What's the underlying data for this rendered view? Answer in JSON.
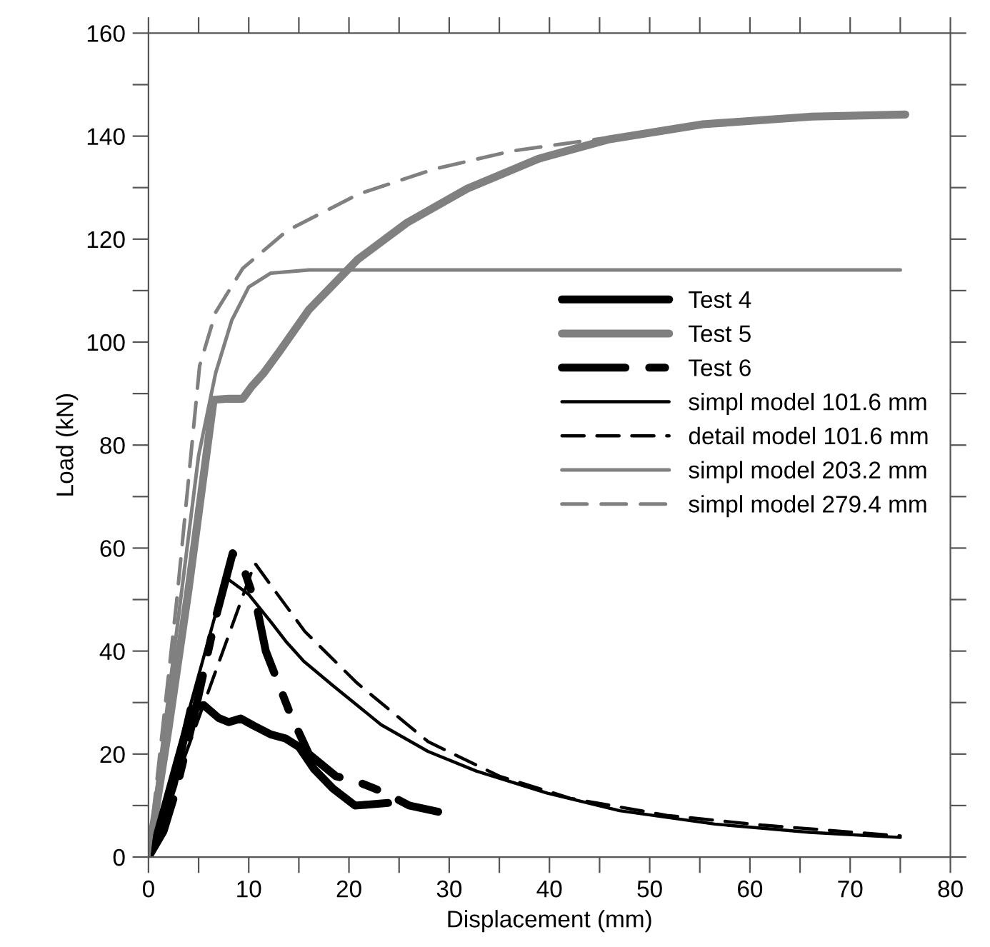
{
  "chart_data": {
    "type": "line",
    "xlabel": "Displacement (mm)",
    "ylabel": "Load (kN)",
    "xlim": [
      0,
      80
    ],
    "ylim": [
      0,
      160
    ],
    "xticks": [
      0,
      {
        "value": 5,
        "label": null
      },
      10,
      {
        "value": 15,
        "label": null
      },
      20,
      {
        "value": 25,
        "label": null
      },
      30,
      {
        "value": 35,
        "label": null
      },
      40,
      {
        "value": 45,
        "label": null
      },
      50,
      {
        "value": 55,
        "label": null
      },
      60,
      {
        "value": 65,
        "label": null
      },
      70,
      {
        "value": 75,
        "label": null
      },
      80
    ],
    "yticks": [
      0,
      {
        "value": 10,
        "label": null
      },
      20,
      {
        "value": 30,
        "label": null
      },
      40,
      {
        "value": 50,
        "label": null
      },
      60,
      {
        "value": 70,
        "label": null
      },
      80,
      {
        "value": 90,
        "label": null
      },
      100,
      {
        "value": 110,
        "label": null
      },
      120,
      {
        "value": 130,
        "label": null
      },
      140,
      {
        "value": 150,
        "label": null
      },
      160
    ],
    "grid": false,
    "legend": "center right",
    "marker": "none",
    "series": [
      {
        "name": "Test 4",
        "color": "#000000",
        "line_style": "solid",
        "x": [
          0,
          1,
          2.5,
          4.2,
          5.5,
          7,
          8,
          9.2,
          10.5,
          12.2,
          13.7,
          15,
          16.5,
          18.4,
          20.6,
          22,
          23.9
        ],
        "values": [
          0,
          5,
          14,
          28.6,
          29.5,
          27,
          26.2,
          26.9,
          25.5,
          23.8,
          23,
          21.4,
          17.1,
          13.3,
          10,
          10.2,
          10.5
        ]
      },
      {
        "name": "Test 5",
        "color": "#808080",
        "line_style": "solid",
        "x": [
          0,
          2,
          4,
          6.5,
          8,
          9.4,
          10.3,
          11.5,
          13,
          16,
          20.9,
          25.8,
          31.8,
          38.9,
          46,
          55.3,
          66.2,
          75.5
        ],
        "values": [
          0,
          25,
          52,
          88.8,
          89,
          89,
          91.4,
          94,
          98,
          106.3,
          116.1,
          123.2,
          129.8,
          135.6,
          139.4,
          142.3,
          143.8,
          144.2
        ]
      },
      {
        "name": "Test 6",
        "color": "#000000",
        "line_style": "dashdot",
        "x": [
          0,
          1.5,
          2.8,
          4.5,
          6.6,
          8.4,
          9.5,
          10.8,
          11.7,
          14.1,
          16,
          18.7,
          21,
          23.7,
          26,
          28.9
        ],
        "values": [
          0,
          5,
          13.3,
          27,
          45.7,
          59,
          56,
          48.6,
          40,
          28,
          20,
          15.7,
          14.5,
          12.4,
          10,
          8.8
        ]
      },
      {
        "name": "simpl model 101.6 mm",
        "color": "#000000",
        "line_style": "solid",
        "x": [
          0,
          7.7,
          10,
          12.2,
          13.7,
          15.5,
          18.4,
          23.2,
          27.9,
          32.7,
          39.8,
          47,
          56.5,
          66,
          75
        ],
        "values": [
          0,
          54.3,
          51,
          45.7,
          41.9,
          38,
          33.3,
          25.7,
          20.5,
          16.7,
          12.4,
          9,
          6.4,
          4.8,
          3.8
        ]
      },
      {
        "name": "detail model 101.6 mm",
        "color": "#000000",
        "line_style": "dashed",
        "x": [
          0,
          10.6,
          12.5,
          15.6,
          20.8,
          27.9,
          35,
          42.1,
          51.7,
          61.2,
          75
        ],
        "values": [
          0,
          57.1,
          52,
          43.8,
          33.8,
          22.4,
          15.7,
          11.4,
          8.1,
          6.2,
          4.1
        ]
      },
      {
        "name": "simpl model 203.2 mm",
        "color": "#808080",
        "line_style": "solid",
        "x": [
          0,
          5,
          6.7,
          8.3,
          10,
          12.2,
          16,
          75
        ],
        "values": [
          0,
          78,
          94,
          104.2,
          110.7,
          113.4,
          114,
          114
        ]
      },
      {
        "name": "simpl model 279.4 mm",
        "color": "#808080",
        "line_style": "dashed",
        "x": [
          0,
          2.8,
          5.1,
          6.7,
          9.4,
          13.8,
          20.9,
          28.5,
          36.2,
          44.3,
          55.3,
          66.2,
          75.5
        ],
        "values": [
          0,
          49.5,
          95.4,
          105.8,
          114.3,
          121.6,
          128.7,
          133.6,
          137.1,
          139.3,
          142.3,
          143.8,
          144.2
        ]
      }
    ]
  }
}
